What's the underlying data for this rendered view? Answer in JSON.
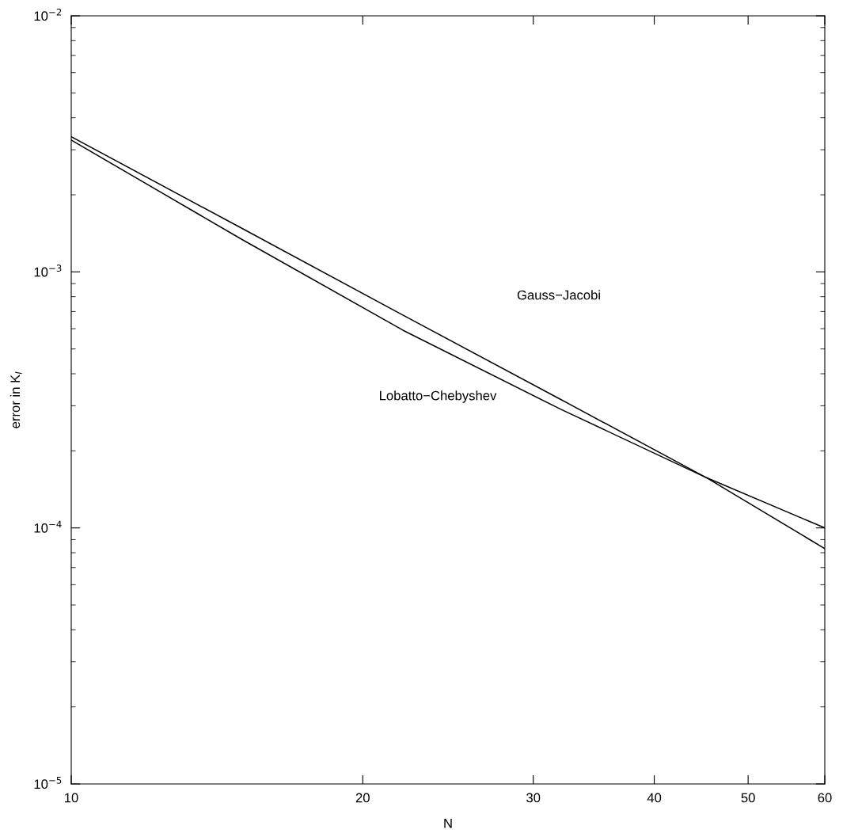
{
  "chart_data": {
    "type": "line",
    "xlabel": "N",
    "ylabel": "error in K$_{I}$",
    "log": "xy",
    "x": [
      10,
      15,
      22,
      32,
      45.3,
      60
    ],
    "series": [
      {
        "color": "#000000",
        "values": [
          0.00337,
          0.00148,
          0.000678,
          0.000318,
          0.000157,
          8.3e-05
        ]
      },
      {
        "color": "#000000",
        "values": [
          0.00327,
          0.00134,
          0.000592,
          0.000291,
          0.000157,
          0.0001
        ]
      }
    ],
    "xlim": [
      10,
      60
    ],
    "xticks": [
      10,
      20,
      30,
      40,
      50,
      60
    ],
    "ylim": [
      1e-05,
      0.01
    ],
    "yticks": [
      {
        "value": 1e-05,
        "label": "10$^{−5}$"
      },
      {
        "value": 0.0001,
        "label": "10$^{−4}$"
      },
      {
        "value": 0.001,
        "label": "10$^{−3}$"
      },
      {
        "value": 0.01,
        "label": "10$^{−2}$"
      }
    ],
    "grid": false,
    "marker": "none",
    "line_style": "solid",
    "annotations": [
      "Gauss−Jacobi",
      "Lobatto−Chebyshev"
    ]
  }
}
